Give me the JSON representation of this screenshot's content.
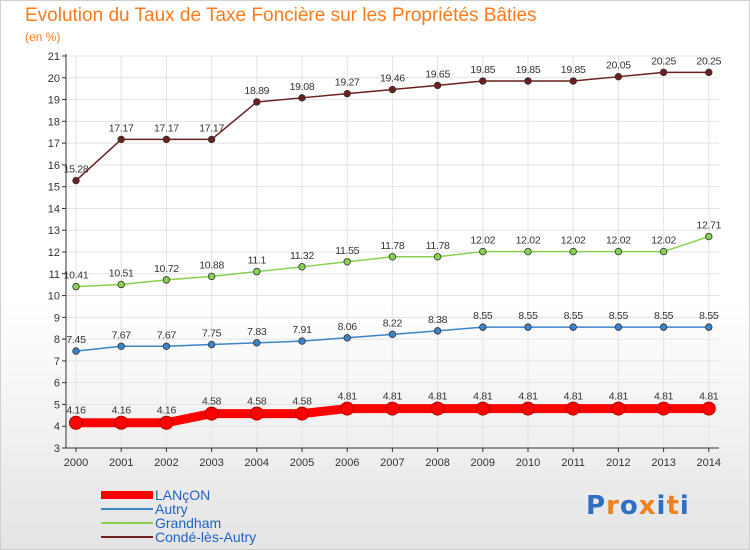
{
  "title": "Evolution du Taux de Taxe Foncière sur les Propriétés Bâties",
  "subtitle": "(en %)",
  "logo": {
    "text": "Proxiti",
    "colors": [
      "#2f6ec5",
      "#f08020",
      "#2f6ec5",
      "#f08020",
      "#2f6ec5",
      "#f08020",
      "#2f6ec5"
    ]
  },
  "chart_data": {
    "type": "line",
    "title": "Evolution du Taux de Taxe Foncière sur les Propriétés Bâties",
    "ylabel": "(en %)",
    "xlabel": "",
    "ylim": [
      3,
      21
    ],
    "yticks": [
      3,
      4,
      5,
      6,
      7,
      8,
      9,
      10,
      11,
      12,
      13,
      14,
      15,
      16,
      17,
      18,
      19,
      20,
      21
    ],
    "grid": true,
    "legend_position": "bottom-left",
    "categories": [
      "2000",
      "2001",
      "2002",
      "2003",
      "2004",
      "2005",
      "2006",
      "2007",
      "2008",
      "2009",
      "2010",
      "2011",
      "2012",
      "2013",
      "2014"
    ],
    "series": [
      {
        "name": "LANçON",
        "color": "#ff0000",
        "values": [
          4.16,
          4.16,
          4.16,
          4.58,
          4.58,
          4.58,
          4.81,
          4.81,
          4.81,
          4.81,
          4.81,
          4.81,
          4.81,
          4.81,
          4.81
        ],
        "labels": [
          "4.16",
          "4.16",
          "4.16",
          "4.58",
          "4.58",
          "4.58",
          "4.81",
          "4.81",
          "4.81",
          "4.81",
          "4.81",
          "4.81",
          "4.81",
          "4.81",
          "4.81"
        ]
      },
      {
        "name": "Autry",
        "color": "#3b84c9",
        "values": [
          7.45,
          7.67,
          7.67,
          7.75,
          7.83,
          7.91,
          8.06,
          8.22,
          8.38,
          8.55,
          8.55,
          8.55,
          8.55,
          8.55,
          8.55
        ],
        "labels": [
          "7.45",
          "7.67",
          "7.67",
          "7.75",
          "7.83",
          "7.91",
          "8.06",
          "8.22",
          "8.38",
          "8.55",
          "8.55",
          "8.55",
          "8.55",
          "8.55",
          "8.55"
        ]
      },
      {
        "name": "Grandham",
        "color": "#88d050",
        "values": [
          10.41,
          10.51,
          10.72,
          10.88,
          11.1,
          11.32,
          11.55,
          11.78,
          11.78,
          12.02,
          12.02,
          12.02,
          12.02,
          12.02,
          12.71
        ],
        "labels": [
          "10.41",
          "10.51",
          "10.72",
          "10.88",
          "11.1",
          "11.32",
          "11.55",
          "11.78",
          "11.78",
          "12.02",
          "12.02",
          "12.02",
          "12.02",
          "12.02",
          "12.71"
        ]
      },
      {
        "name": "Condé-lès-Autry",
        "color": "#6b1f1f",
        "values": [
          15.28,
          17.17,
          17.17,
          17.17,
          18.89,
          19.08,
          19.27,
          19.46,
          19.65,
          19.85,
          19.85,
          19.85,
          20.05,
          20.25,
          20.25
        ],
        "labels": [
          "15.28",
          "17.17",
          "17.17",
          "17.17",
          "18.89",
          "19.08",
          "19.27",
          "19.46",
          "19.65",
          "19.85",
          "19.85",
          "19.85",
          "20.05",
          "20.25",
          "20.25"
        ]
      }
    ]
  }
}
